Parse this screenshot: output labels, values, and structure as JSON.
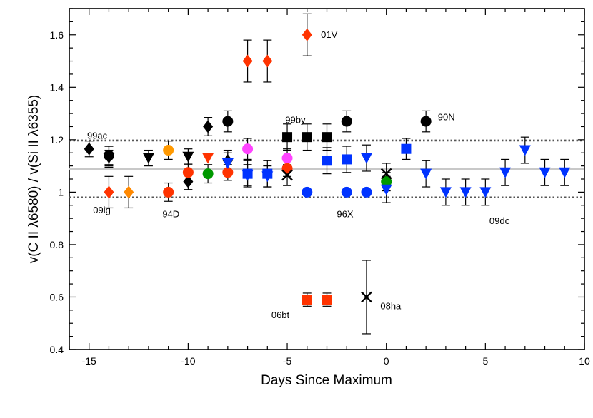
{
  "chart_data": {
    "type": "scatter",
    "title": "",
    "xlabel": "Days Since Maximum",
    "ylabel": "v(C II λ6580) / v(Si II λ6355)",
    "xlim": [
      -16,
      10
    ],
    "ylim": [
      0.4,
      1.7
    ],
    "xticks": [
      -15,
      -10,
      -5,
      0,
      5,
      10
    ],
    "xtick_labels": [
      "-15",
      "-10",
      "-5",
      "0",
      "5",
      "10"
    ],
    "yticks": [
      0.4,
      0.6,
      0.8,
      1.0,
      1.2,
      1.4,
      1.6
    ],
    "ytick_labels": [
      "0.4",
      "0.6",
      "0.8",
      "1",
      "1.2",
      "1.4",
      "1.6"
    ],
    "grid": false,
    "reference_lines": [
      {
        "name": "mean",
        "y": 1.088,
        "style": "solid",
        "color": "#c8c8c8"
      },
      {
        "name": "upper",
        "y": 1.197,
        "style": "dotted",
        "color": "#555555"
      },
      {
        "name": "lower",
        "y": 0.98,
        "style": "dotted",
        "color": "#555555"
      }
    ],
    "annotations": [
      {
        "text": "01V",
        "x": -3.3,
        "y": 1.6
      },
      {
        "text": "99by",
        "x": -5.1,
        "y": 1.275
      },
      {
        "text": "90N",
        "x": 2.6,
        "y": 1.285
      },
      {
        "text": "99ac",
        "x": -15.1,
        "y": 1.215
      },
      {
        "text": "09ig",
        "x": -14.8,
        "y": 0.93
      },
      {
        "text": "94D",
        "x": -11.3,
        "y": 0.915
      },
      {
        "text": "96X",
        "x": -2.5,
        "y": 0.915
      },
      {
        "text": "09dc",
        "x": 5.2,
        "y": 0.89
      },
      {
        "text": "06bt",
        "x": -5.8,
        "y": 0.53
      },
      {
        "text": "08ha",
        "x": -0.3,
        "y": 0.565
      }
    ],
    "series": [
      {
        "name": "01V",
        "marker": "diamond",
        "color": "#ff3300",
        "points": [
          {
            "x": -7,
            "y": 1.5,
            "err": 0.08
          },
          {
            "x": -6,
            "y": 1.5,
            "err": 0.08
          },
          {
            "x": -4,
            "y": 1.6,
            "err": 0.08
          }
        ]
      },
      {
        "name": "99ac",
        "marker": "diamond",
        "color": "#000000",
        "points": [
          {
            "x": -15,
            "y": 1.165,
            "err": 0.03
          },
          {
            "x": -14,
            "y": 1.135,
            "err": 0.04
          },
          {
            "x": -10,
            "y": 1.04,
            "err": 0.03
          },
          {
            "x": -9,
            "y": 1.25,
            "err": 0.035
          },
          {
            "x": -8,
            "y": 1.12,
            "err": 0.04
          }
        ]
      },
      {
        "name": "09ig",
        "marker": "diamond",
        "color": "#ff3300",
        "points": [
          {
            "x": -14,
            "y": 1.0,
            "err": 0.06
          }
        ]
      },
      {
        "name": "09ig-b",
        "marker": "diamond",
        "color": "#ff8800",
        "points": [
          {
            "x": -13,
            "y": 1.0,
            "err": 0.06
          }
        ]
      },
      {
        "name": "black-circles",
        "marker": "circle",
        "color": "#000000",
        "points": [
          {
            "x": -14,
            "y": 1.14,
            "err": 0.035
          },
          {
            "x": -8,
            "y": 1.27,
            "err": 0.04
          },
          {
            "x": -2,
            "y": 1.27,
            "err": 0.04
          },
          {
            "x": 2,
            "y": 1.27,
            "err": 0.04
          }
        ]
      },
      {
        "name": "94D",
        "marker": "circle",
        "color": "#ff3300",
        "points": [
          {
            "x": -11,
            "y": 1.0,
            "err": 0.035
          },
          {
            "x": -10,
            "y": 1.075,
            "err": 0.035
          },
          {
            "x": -8,
            "y": 1.075,
            "err": 0.03
          },
          {
            "x": -5,
            "y": 1.09,
            "err": 0.03
          }
        ]
      },
      {
        "name": "orange-circle",
        "marker": "circle",
        "color": "#ff9900",
        "points": [
          {
            "x": -11,
            "y": 1.16,
            "err": 0.035
          }
        ]
      },
      {
        "name": "green-circles",
        "marker": "circle",
        "color": "#009900",
        "points": [
          {
            "x": -9,
            "y": 1.07,
            "err": 0.035
          },
          {
            "x": 0,
            "y": 1.04,
            "err": 0.035
          }
        ]
      },
      {
        "name": "magenta-circles",
        "marker": "circle",
        "color": "#ff44ff",
        "points": [
          {
            "x": -7,
            "y": 1.165,
            "err": 0.04
          },
          {
            "x": -5,
            "y": 1.13,
            "err": 0.035
          }
        ]
      },
      {
        "name": "96X",
        "marker": "circle",
        "color": "#0033ff",
        "points": [
          {
            "x": -4,
            "y": 1.0,
            "err": 0
          },
          {
            "x": -2,
            "y": 1.0,
            "err": 0
          },
          {
            "x": -1,
            "y": 1.0,
            "err": 0
          }
        ]
      },
      {
        "name": "black-triangles",
        "marker": "triangle-down",
        "color": "#000000",
        "points": [
          {
            "x": -14,
            "y": 1.13,
            "err": 0.03
          },
          {
            "x": -12,
            "y": 1.13,
            "err": 0.03
          },
          {
            "x": -10,
            "y": 1.135,
            "err": 0.03
          }
        ]
      },
      {
        "name": "red-triangle",
        "marker": "triangle-down",
        "color": "#ff3300",
        "points": [
          {
            "x": -9,
            "y": 1.13,
            "err": 0
          }
        ]
      },
      {
        "name": "09dc",
        "marker": "triangle-down",
        "color": "#0033ff",
        "points": [
          {
            "x": -8,
            "y": 1.11,
            "err": 0.04
          },
          {
            "x": -7,
            "y": 1.065,
            "err": 0.04
          },
          {
            "x": -6,
            "y": 1.06,
            "err": 0.04
          },
          {
            "x": -1,
            "y": 1.13,
            "err": 0.05
          },
          {
            "x": 0,
            "y": 1.01,
            "err": 0.05
          },
          {
            "x": 2,
            "y": 1.07,
            "err": 0.05
          },
          {
            "x": 3,
            "y": 1.0,
            "err": 0.05
          },
          {
            "x": 4,
            "y": 1.0,
            "err": 0.05
          },
          {
            "x": 5,
            "y": 1.0,
            "err": 0.05
          },
          {
            "x": 6,
            "y": 1.075,
            "err": 0.05
          },
          {
            "x": 7,
            "y": 1.16,
            "err": 0.05
          },
          {
            "x": 8,
            "y": 1.075,
            "err": 0.05
          },
          {
            "x": 9,
            "y": 1.075,
            "err": 0.05
          }
        ]
      },
      {
        "name": "99by",
        "marker": "square",
        "color": "#000000",
        "points": [
          {
            "x": -5,
            "y": 1.21,
            "err": 0.05
          },
          {
            "x": -4,
            "y": 1.21,
            "err": 0.05
          },
          {
            "x": -3,
            "y": 1.21,
            "err": 0.05
          }
        ]
      },
      {
        "name": "blue-squares",
        "marker": "square",
        "color": "#0033ff",
        "points": [
          {
            "x": -7,
            "y": 1.07,
            "err": 0.05
          },
          {
            "x": -6,
            "y": 1.07,
            "err": 0.05
          },
          {
            "x": -3,
            "y": 1.12,
            "err": 0.05
          },
          {
            "x": -2,
            "y": 1.125,
            "err": 0.05
          },
          {
            "x": 1,
            "y": 1.165,
            "err": 0.04
          }
        ]
      },
      {
        "name": "06bt",
        "marker": "square",
        "color": "#ff3300",
        "points": [
          {
            "x": -4,
            "y": 0.59,
            "err": 0.025
          },
          {
            "x": -3,
            "y": 0.59,
            "err": 0.025
          }
        ]
      },
      {
        "name": "08ha",
        "marker": "cross",
        "color": "#000000",
        "points": [
          {
            "x": -5,
            "y": 1.065,
            "err": 0.04
          },
          {
            "x": -1,
            "y": 0.6,
            "err": 0.14
          },
          {
            "x": 0,
            "y": 1.07,
            "err": 0.04
          }
        ]
      }
    ]
  }
}
